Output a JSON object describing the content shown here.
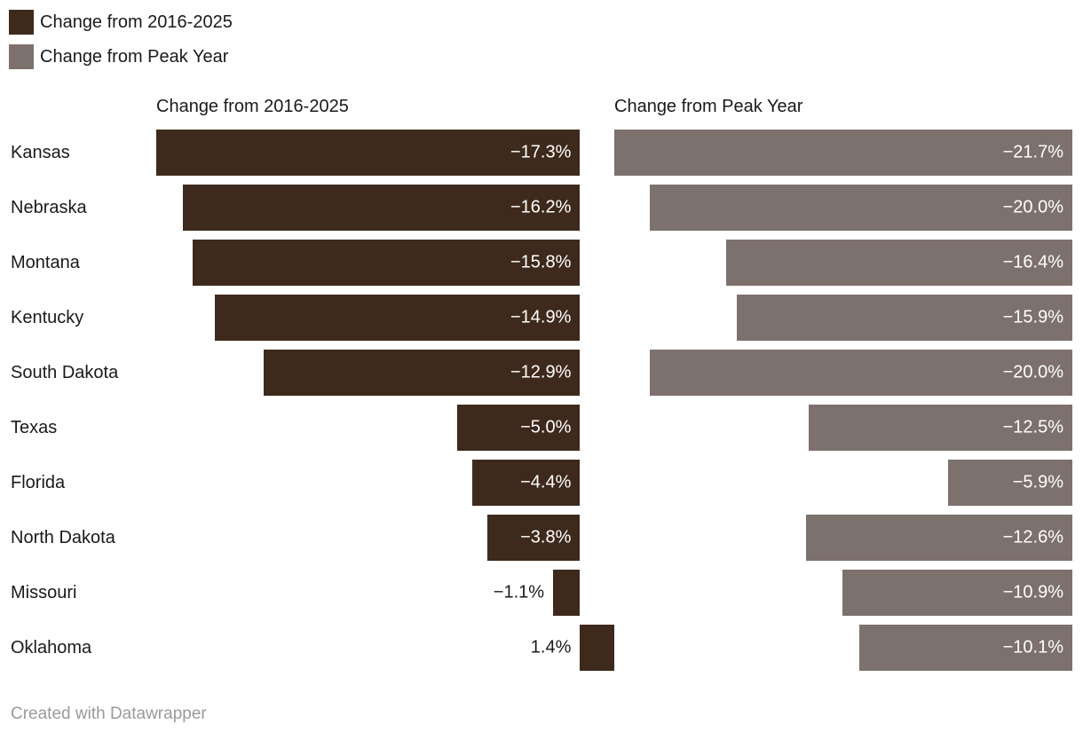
{
  "colors": {
    "series_2016_2025": "#3e2a1c",
    "series_peak_year": "#7d716d",
    "text_dark": "#1a1a1a",
    "value_label_light": "#ffffff",
    "footer_text": "#9a9a9a",
    "background": "#ffffff"
  },
  "legend": {
    "items": [
      {
        "label": "Change from 2016-2025",
        "color": "#3e2a1c"
      },
      {
        "label": "Change from Peak Year",
        "color": "#7d716d"
      }
    ]
  },
  "column_headers": {
    "left": "Change from 2016-2025",
    "right": "Change from Peak Year"
  },
  "footer": {
    "credit": "Created with Datawrapper"
  },
  "chart_data": {
    "type": "bar",
    "orientation": "horizontal",
    "title": "",
    "grid": false,
    "legend_position": "top-left",
    "categories": [
      "Kansas",
      "Nebraska",
      "Montana",
      "Kentucky",
      "South Dakota",
      "Texas",
      "Florida",
      "North Dakota",
      "Missouri",
      "Oklahoma"
    ],
    "series": [
      {
        "name": "Change from 2016-2025",
        "color": "#3e2a1c",
        "xlim": [
          -17.3,
          1.4
        ],
        "values": [
          -17.3,
          -16.2,
          -15.8,
          -14.9,
          -12.9,
          -5.0,
          -4.4,
          -3.8,
          -1.1,
          1.4
        ],
        "labels": [
          "−17.3%",
          "−16.2%",
          "−15.8%",
          "−14.9%",
          "−12.9%",
          "−5.0%",
          "−4.4%",
          "−3.8%",
          "−1.1%",
          "1.4%"
        ]
      },
      {
        "name": "Change from Peak Year",
        "color": "#7d716d",
        "xlim": [
          -21.7,
          0
        ],
        "values": [
          -21.7,
          -20.0,
          -16.4,
          -15.9,
          -20.0,
          -12.5,
          -5.9,
          -12.6,
          -10.9,
          -10.1
        ],
        "labels": [
          "−21.7%",
          "−20.0%",
          "−16.4%",
          "−15.9%",
          "−20.0%",
          "−12.5%",
          "−5.9%",
          "−12.6%",
          "−10.9%",
          "−10.1%"
        ]
      }
    ]
  }
}
